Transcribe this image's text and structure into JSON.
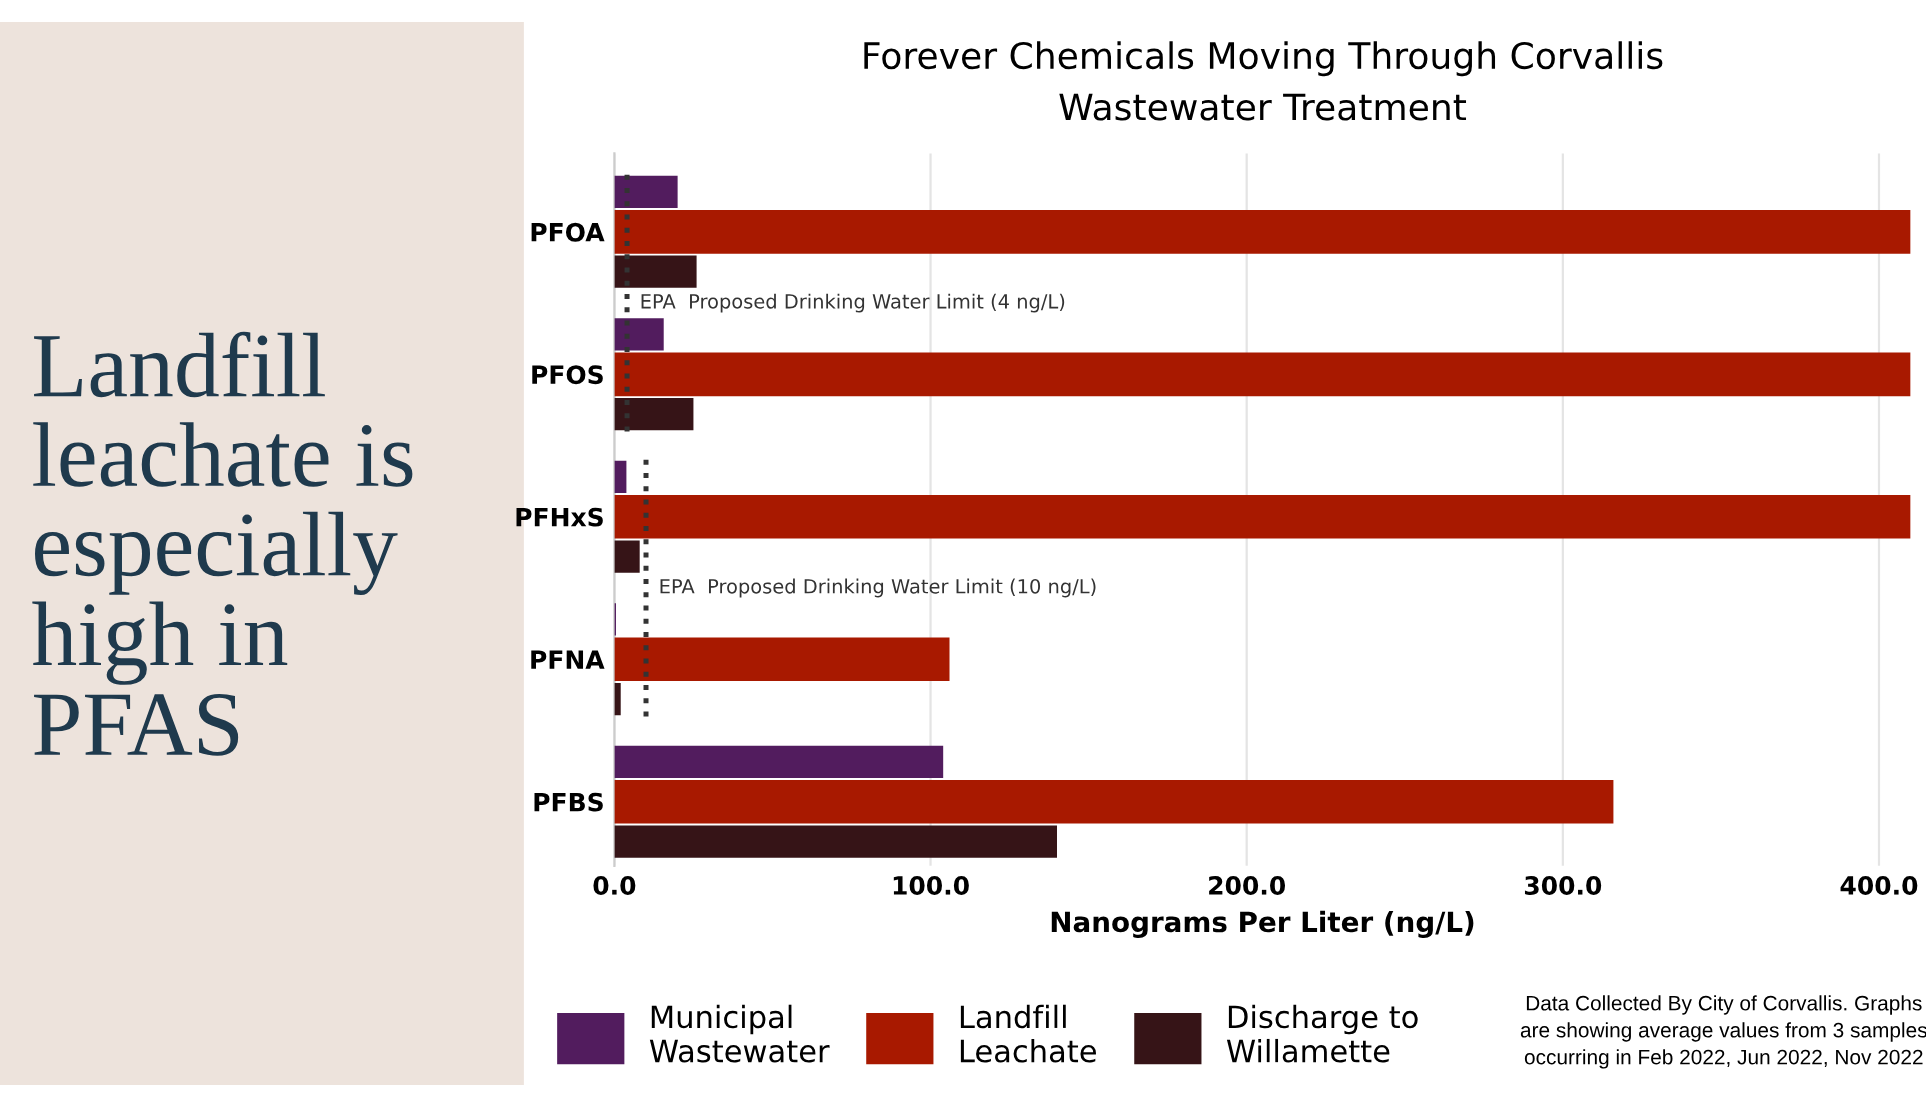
{
  "chart_data": [
    {
      "type": "other",
      "title": "Landfill leachate is especially high in PFAS"
    },
    {
      "type": "bar",
      "orientation": "horizontal",
      "title": "Forever Chemicals Moving Through Corvallis\nWastewater Treatment",
      "xlabel": "Nanograms Per Liter (ng/L)",
      "categories": [
        "PFOA",
        "PFOS",
        "PFHxS",
        "PFNA",
        "PFBS"
      ],
      "series": [
        {
          "name": "Municipal\nWastewater",
          "color": "#521c5e",
          "values": [
            20,
            15.6,
            3.8,
            0.5,
            104
          ]
        },
        {
          "name": "Landfill\nLeachate",
          "color": "#a81900",
          "values": [
            410,
            410,
            410,
            106,
            316
          ]
        },
        {
          "name": "Discharge to\nWillamette",
          "color": "#361417",
          "values": [
            26,
            25,
            8,
            2,
            140
          ]
        }
      ],
      "xlim": [
        0,
        410
      ],
      "xticks": [
        {
          "value": 0,
          "label": "0.0"
        },
        {
          "value": 100,
          "label": "100.0"
        },
        {
          "value": 200,
          "label": "200.0"
        },
        {
          "value": 300,
          "label": "300.0"
        },
        {
          "value": 400,
          "label": "400.0"
        }
      ],
      "ref_lines": [
        {
          "axis": "x",
          "value": 4,
          "label": "EPA  Proposed Drinking Water Limit (4 ng/L)",
          "color": "#333333",
          "line_style": "dotted"
        },
        {
          "axis": "x",
          "value": 10,
          "label": "EPA  Proposed Drinking Water Limit (10 ng/L)",
          "color": "#333333",
          "line_style": "dotted"
        }
      ],
      "grid": "x",
      "legend": "bottom",
      "annotations": [
        "Data Collected By City of Corvallis. Graphs are showing average values from 3 samples occurring in Feb 2022, Jun 2022, Nov 2022"
      ]
    }
  ]
}
